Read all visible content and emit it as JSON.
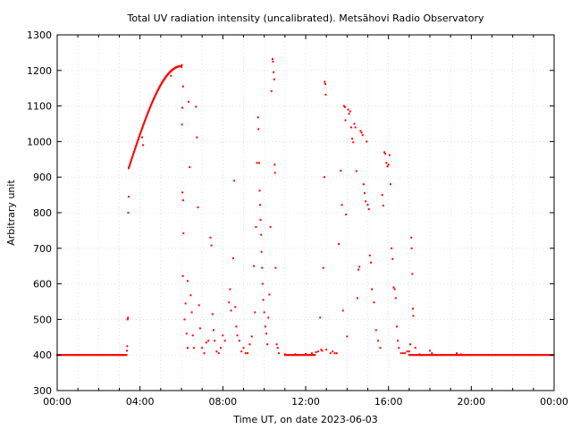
{
  "chart_data": {
    "type": "scatter",
    "title": "Total UV radiation intensity (uncalibrated). Metsähovi Radio Observatory",
    "xlabel": "Time UT, on date 2023-06-03",
    "ylabel": "Arbitrary unit",
    "x_unit": "hours UT",
    "xlim": [
      0,
      24
    ],
    "ylim": [
      300,
      1300
    ],
    "grid": true,
    "marker_color": "#ff0000",
    "x_ticks": [
      {
        "v": 0,
        "label": "00:00"
      },
      {
        "v": 4,
        "label": "04:00"
      },
      {
        "v": 8,
        "label": "08:00"
      },
      {
        "v": 12,
        "label": "12:00"
      },
      {
        "v": 16,
        "label": "16:00"
      },
      {
        "v": 20,
        "label": "20:00"
      },
      {
        "v": 24,
        "label": "00:00"
      }
    ],
    "y_ticks": [
      300,
      400,
      500,
      600,
      700,
      800,
      900,
      1000,
      1100,
      1200,
      1300
    ],
    "baseline": {
      "value": 400,
      "ranges": [
        [
          0,
          3.3
        ],
        [
          11.0,
          12.5
        ],
        [
          17.0,
          24.0
        ]
      ]
    },
    "rising_arc": {
      "x_start": 3.45,
      "x_end": 6.0,
      "y_start": 925,
      "y_end": 1212
    },
    "points": [
      [
        3.35,
        400
      ],
      [
        3.37,
        412
      ],
      [
        3.38,
        425
      ],
      [
        3.4,
        500
      ],
      [
        3.42,
        505
      ],
      [
        3.43,
        800
      ],
      [
        3.45,
        845
      ],
      [
        4.1,
        1012
      ],
      [
        4.15,
        990
      ],
      [
        5.5,
        1185
      ],
      [
        6.0,
        1210
      ],
      [
        6.02,
        1215
      ],
      [
        6.08,
        1155
      ],
      [
        6.05,
        1095
      ],
      [
        6.03,
        1048
      ],
      [
        6.05,
        857
      ],
      [
        6.08,
        835
      ],
      [
        6.1,
        742
      ],
      [
        6.07,
        622
      ],
      [
        6.3,
        608
      ],
      [
        6.2,
        545
      ],
      [
        6.15,
        500
      ],
      [
        6.25,
        460
      ],
      [
        6.3,
        420
      ],
      [
        6.35,
        1112
      ],
      [
        6.4,
        928
      ],
      [
        6.45,
        568
      ],
      [
        6.5,
        520
      ],
      [
        6.55,
        455
      ],
      [
        6.6,
        420
      ],
      [
        6.7,
        1098
      ],
      [
        6.75,
        1012
      ],
      [
        6.8,
        815
      ],
      [
        6.85,
        540
      ],
      [
        6.9,
        475
      ],
      [
        7.0,
        420
      ],
      [
        7.1,
        405
      ],
      [
        7.2,
        435
      ],
      [
        7.3,
        440
      ],
      [
        7.4,
        730
      ],
      [
        7.45,
        708
      ],
      [
        7.5,
        515
      ],
      [
        7.55,
        470
      ],
      [
        7.6,
        440
      ],
      [
        7.7,
        410
      ],
      [
        7.8,
        405
      ],
      [
        7.9,
        420
      ],
      [
        8.0,
        455
      ],
      [
        8.1,
        440
      ],
      [
        8.3,
        548
      ],
      [
        8.35,
        585
      ],
      [
        8.4,
        525
      ],
      [
        8.5,
        672
      ],
      [
        8.55,
        890
      ],
      [
        8.6,
        535
      ],
      [
        8.65,
        480
      ],
      [
        8.7,
        455
      ],
      [
        8.8,
        440
      ],
      [
        8.9,
        410
      ],
      [
        9.0,
        420
      ],
      [
        9.1,
        405
      ],
      [
        9.2,
        405
      ],
      [
        9.3,
        430
      ],
      [
        9.4,
        452
      ],
      [
        9.5,
        650
      ],
      [
        9.55,
        520
      ],
      [
        9.6,
        760
      ],
      [
        9.65,
        940
      ],
      [
        9.7,
        1068
      ],
      [
        9.72,
        1035
      ],
      [
        9.75,
        940
      ],
      [
        9.78,
        862
      ],
      [
        9.8,
        822
      ],
      [
        9.82,
        780
      ],
      [
        9.85,
        738
      ],
      [
        9.87,
        690
      ],
      [
        9.9,
        645
      ],
      [
        9.92,
        600
      ],
      [
        9.95,
        555
      ],
      [
        10.0,
        520
      ],
      [
        10.05,
        480
      ],
      [
        10.1,
        460
      ],
      [
        10.15,
        430
      ],
      [
        10.2,
        505
      ],
      [
        10.25,
        570
      ],
      [
        10.3,
        760
      ],
      [
        10.35,
        1142
      ],
      [
        10.4,
        1232
      ],
      [
        10.42,
        1225
      ],
      [
        10.45,
        1195
      ],
      [
        10.48,
        1175
      ],
      [
        10.5,
        935
      ],
      [
        10.52,
        912
      ],
      [
        10.55,
        645
      ],
      [
        10.6,
        430
      ],
      [
        10.65,
        420
      ],
      [
        10.7,
        405
      ],
      [
        11.0,
        402
      ],
      [
        11.5,
        402
      ],
      [
        12.0,
        403
      ],
      [
        12.3,
        405
      ],
      [
        12.5,
        408
      ],
      [
        12.6,
        410
      ],
      [
        12.7,
        505
      ],
      [
        12.75,
        415
      ],
      [
        12.8,
        412
      ],
      [
        12.85,
        645
      ],
      [
        12.9,
        900
      ],
      [
        12.92,
        1168
      ],
      [
        12.95,
        1162
      ],
      [
        12.97,
        1132
      ],
      [
        13.0,
        415
      ],
      [
        13.2,
        405
      ],
      [
        13.3,
        410
      ],
      [
        13.4,
        405
      ],
      [
        13.5,
        405
      ],
      [
        13.6,
        712
      ],
      [
        13.7,
        918
      ],
      [
        13.75,
        822
      ],
      [
        13.8,
        525
      ],
      [
        13.85,
        1100
      ],
      [
        13.9,
        1097
      ],
      [
        13.92,
        1060
      ],
      [
        13.95,
        795
      ],
      [
        14.0,
        452
      ],
      [
        14.05,
        1090
      ],
      [
        14.1,
        1078
      ],
      [
        14.15,
        1085
      ],
      [
        14.2,
        1040
      ],
      [
        14.25,
        1008
      ],
      [
        14.3,
        998
      ],
      [
        14.35,
        1050
      ],
      [
        14.4,
        1040
      ],
      [
        14.45,
        917
      ],
      [
        14.5,
        560
      ],
      [
        14.55,
        640
      ],
      [
        14.6,
        648
      ],
      [
        14.65,
        1030
      ],
      [
        14.7,
        1025
      ],
      [
        14.75,
        1018
      ],
      [
        14.8,
        880
      ],
      [
        14.85,
        855
      ],
      [
        14.9,
        832
      ],
      [
        14.95,
        1000
      ],
      [
        15.0,
        822
      ],
      [
        15.05,
        810
      ],
      [
        15.1,
        680
      ],
      [
        15.15,
        660
      ],
      [
        15.2,
        585
      ],
      [
        15.3,
        548
      ],
      [
        15.4,
        470
      ],
      [
        15.5,
        440
      ],
      [
        15.6,
        420
      ],
      [
        15.7,
        850
      ],
      [
        15.75,
        820
      ],
      [
        15.8,
        970
      ],
      [
        15.85,
        966
      ],
      [
        15.9,
        940
      ],
      [
        15.95,
        930
      ],
      [
        16.0,
        935
      ],
      [
        16.05,
        962
      ],
      [
        16.1,
        880
      ],
      [
        16.15,
        700
      ],
      [
        16.2,
        670
      ],
      [
        16.25,
        590
      ],
      [
        16.3,
        585
      ],
      [
        16.35,
        560
      ],
      [
        16.4,
        480
      ],
      [
        16.45,
        440
      ],
      [
        16.5,
        420
      ],
      [
        16.6,
        405
      ],
      [
        16.7,
        405
      ],
      [
        16.8,
        405
      ],
      [
        16.9,
        410
      ],
      [
        17.0,
        410
      ],
      [
        17.05,
        430
      ],
      [
        17.1,
        730
      ],
      [
        17.12,
        700
      ],
      [
        17.15,
        628
      ],
      [
        17.18,
        530
      ],
      [
        17.2,
        510
      ],
      [
        17.3,
        420
      ],
      [
        17.5,
        402
      ],
      [
        18.0,
        412
      ],
      [
        18.1,
        405
      ],
      [
        19.3,
        405
      ],
      [
        19.5,
        402
      ]
    ]
  }
}
